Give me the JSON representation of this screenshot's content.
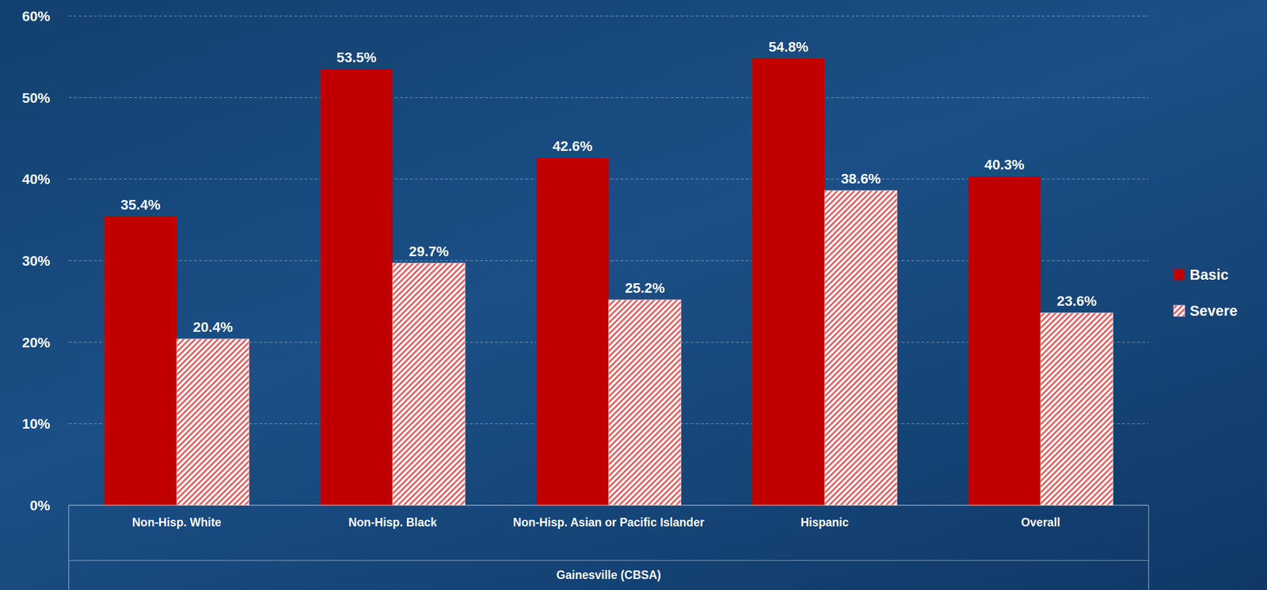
{
  "chart_data": {
    "type": "bar",
    "categories": [
      "Non-Hisp. White",
      "Non-Hisp. Black",
      "Non-Hisp. Asian or Pacific Islander",
      "Hispanic",
      "Overall"
    ],
    "x_label": "Gainesville (CBSA)",
    "series": [
      {
        "name": "Basic",
        "color": "#c00000",
        "values": [
          35.4,
          53.5,
          42.6,
          54.8,
          40.3
        ],
        "value_labels": [
          "35.4%",
          "53.5%",
          "42.6%",
          "54.8%",
          "40.3%"
        ]
      },
      {
        "name": "Severe",
        "color": "#e8585a",
        "values": [
          20.4,
          29.7,
          25.2,
          38.6,
          23.6
        ],
        "value_labels": [
          "20.4%",
          "29.7%",
          "25.2%",
          "38.6%",
          "23.6%"
        ]
      }
    ],
    "ylim": [
      0,
      60
    ],
    "yticks": [
      {
        "value": 0,
        "label": "0%"
      },
      {
        "value": 10,
        "label": "10%"
      },
      {
        "value": 20,
        "label": "20%"
      },
      {
        "value": 30,
        "label": "30%"
      },
      {
        "value": 40,
        "label": "40%"
      },
      {
        "value": 50,
        "label": "50%"
      },
      {
        "value": 60,
        "label": "60%"
      }
    ],
    "grid": true,
    "legend": "right",
    "data_labels": true
  }
}
